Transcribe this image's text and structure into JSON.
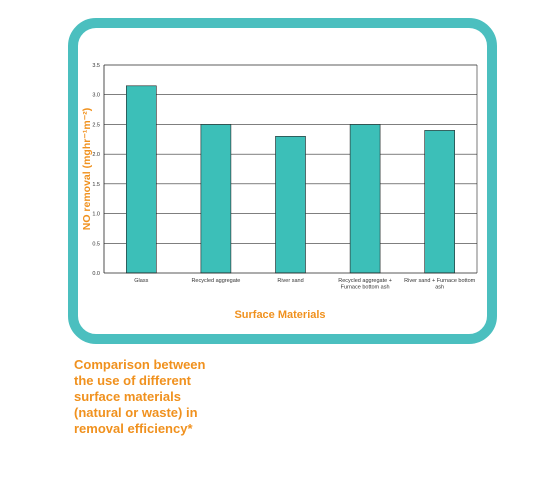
{
  "colors": {
    "frame": "#4bbfbf",
    "bar": "#3cbfb8",
    "accent": "#f0911e"
  },
  "caption": {
    "lines": [
      "Comparison between",
      "the use of different",
      "surface materials",
      "(natural or waste) in",
      "removal efficiency*"
    ]
  },
  "chart_data": {
    "type": "bar",
    "title": "",
    "xlabel": "Surface Materials",
    "ylabel": "NO removal (mghr⁻¹m⁻²)",
    "ylim": [
      0,
      3.5
    ],
    "yticks": [
      0.0,
      0.5,
      1.0,
      1.5,
      2.0,
      2.5,
      3.0,
      3.5
    ],
    "ytick_labels": [
      "0.0",
      "0.5",
      "1.0",
      "1.5",
      "2.0",
      "2.5",
      "3.0",
      "3.5"
    ],
    "categories": [
      "Glass",
      "Recycled aggregate",
      "River sand",
      "Recycled aggregate + Furnace bottom ash",
      "River sand + Furnace bottom ash"
    ],
    "category_label_lines": [
      [
        "Glass"
      ],
      [
        "Recycled aggregate"
      ],
      [
        "River sand"
      ],
      [
        "Recycled aggregate +",
        "Furnace bottom ash"
      ],
      [
        "River sand + Furnace bottom",
        "ash"
      ]
    ],
    "values": [
      3.15,
      2.5,
      2.3,
      2.5,
      2.4
    ],
    "grid": true,
    "legend": "none"
  }
}
